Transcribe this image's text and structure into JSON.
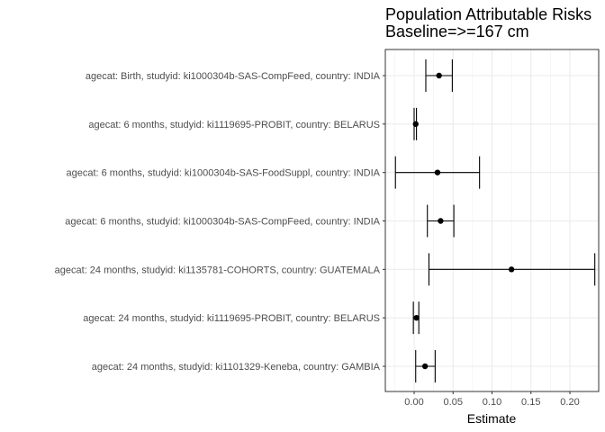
{
  "chart_data": {
    "type": "forest",
    "title": "Population Attributable Risks",
    "subtitle": "Baseline=>=167 cm",
    "xlabel": "Estimate",
    "ylabel": "",
    "xlim": [
      -0.037,
      0.237
    ],
    "x_ticks": [
      0.0,
      0.05,
      0.1,
      0.15,
      0.2
    ],
    "x_tick_labels": [
      "0.00",
      "0.05",
      "0.10",
      "0.15",
      "0.20"
    ],
    "grid": true,
    "rows": [
      {
        "label": "agecat: Birth, studyid: ki1000304b-SAS-CompFeed, country: INDIA",
        "estimate": 0.032,
        "lower": 0.015,
        "upper": 0.049
      },
      {
        "label": "agecat: 6 months, studyid: ki1119695-PROBIT, country: BELARUS",
        "estimate": 0.002,
        "lower": 0.0,
        "upper": 0.003
      },
      {
        "label": "agecat: 6 months, studyid: ki1000304b-SAS-FoodSuppl, country: INDIA",
        "estimate": 0.03,
        "lower": -0.024,
        "upper": 0.084
      },
      {
        "label": "agecat: 6 months, studyid: ki1000304b-SAS-CompFeed, country: INDIA",
        "estimate": 0.034,
        "lower": 0.017,
        "upper": 0.051
      },
      {
        "label": "agecat: 24 months, studyid: ki1135781-COHORTS, country: GUATEMALA",
        "estimate": 0.125,
        "lower": 0.019,
        "upper": 0.232
      },
      {
        "label": "agecat: 24 months, studyid: ki1119695-PROBIT, country: BELARUS",
        "estimate": 0.003,
        "lower": -0.001,
        "upper": 0.006
      },
      {
        "label": "agecat: 24 months, studyid: ki1101329-Keneba, country: GAMBIA",
        "estimate": 0.014,
        "lower": 0.002,
        "upper": 0.027
      }
    ]
  }
}
